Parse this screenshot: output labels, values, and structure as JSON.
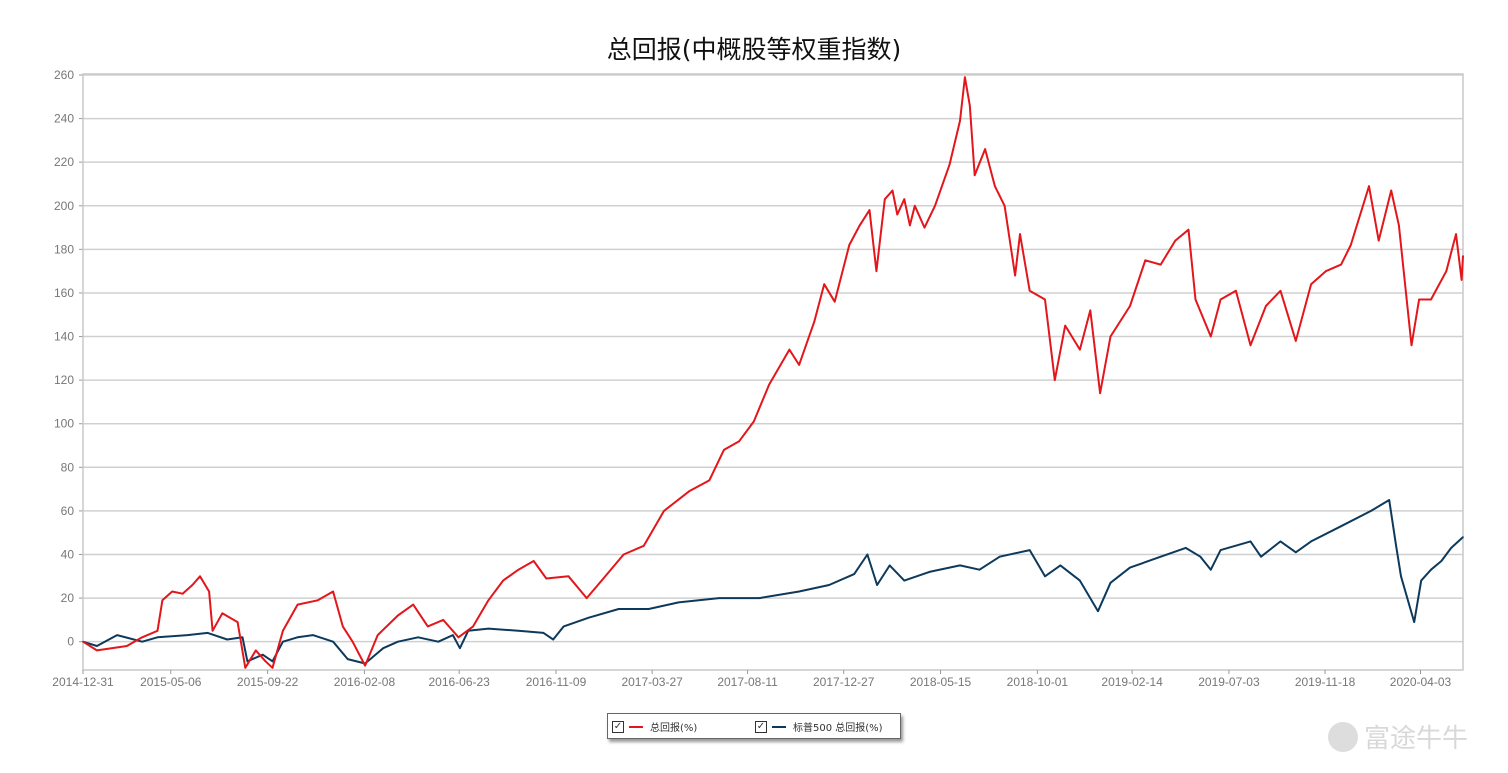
{
  "chart_data": {
    "type": "line",
    "title": "总回报(中概股等权重指数)",
    "xlabel": "",
    "ylabel": "",
    "xlim": [
      "2014-12-31",
      "2020-06-03"
    ],
    "ylim": [
      -13,
      260
    ],
    "yticks": [
      0,
      20,
      40,
      60,
      80,
      100,
      120,
      140,
      160,
      180,
      200,
      220,
      240,
      260
    ],
    "xticks": [
      "2014-12-31",
      "2015-05-06",
      "2015-09-22",
      "2016-02-08",
      "2016-06-23",
      "2016-11-09",
      "2017-03-27",
      "2017-08-11",
      "2017-12-27",
      "2018-05-15",
      "2018-10-01",
      "2019-02-14",
      "2019-07-03",
      "2019-11-18",
      "2020-04-03"
    ],
    "grid": "horizontal",
    "legend_position": "bottom",
    "series": [
      {
        "name": "总回报(%)",
        "color": "#e3161b",
        "points": [
          [
            "2014-12-31",
            0
          ],
          [
            "2015-01-20",
            -4
          ],
          [
            "2015-03-04",
            -2
          ],
          [
            "2015-03-26",
            2
          ],
          [
            "2015-04-17",
            5
          ],
          [
            "2015-04-24",
            19
          ],
          [
            "2015-05-08",
            23
          ],
          [
            "2015-05-23",
            22
          ],
          [
            "2015-06-06",
            26
          ],
          [
            "2015-06-17",
            30
          ],
          [
            "2015-06-30",
            23
          ],
          [
            "2015-07-05",
            5
          ],
          [
            "2015-07-19",
            13
          ],
          [
            "2015-08-10",
            9
          ],
          [
            "2015-08-21",
            -12
          ],
          [
            "2015-09-05",
            -4
          ],
          [
            "2015-09-19",
            -9
          ],
          [
            "2015-09-29",
            -12
          ],
          [
            "2015-10-14",
            5
          ],
          [
            "2015-11-04",
            17
          ],
          [
            "2015-12-03",
            19
          ],
          [
            "2015-12-25",
            23
          ],
          [
            "2016-01-08",
            7
          ],
          [
            "2016-01-22",
            0
          ],
          [
            "2016-02-09",
            -11
          ],
          [
            "2016-02-27",
            3
          ],
          [
            "2016-03-27",
            12
          ],
          [
            "2016-04-18",
            17
          ],
          [
            "2016-05-09",
            7
          ],
          [
            "2016-05-31",
            10
          ],
          [
            "2016-06-22",
            2
          ],
          [
            "2016-07-13",
            7
          ],
          [
            "2016-08-04",
            19
          ],
          [
            "2016-08-25",
            28
          ],
          [
            "2016-09-16",
            33
          ],
          [
            "2016-10-08",
            37
          ],
          [
            "2016-10-26",
            29
          ],
          [
            "2016-11-27",
            30
          ],
          [
            "2016-12-23",
            20
          ],
          [
            "2017-01-16",
            29
          ],
          [
            "2017-02-14",
            40
          ],
          [
            "2017-03-15",
            44
          ],
          [
            "2017-04-13",
            60
          ],
          [
            "2017-05-19",
            69
          ],
          [
            "2017-06-17",
            74
          ],
          [
            "2017-07-08",
            88
          ],
          [
            "2017-07-30",
            92
          ],
          [
            "2017-08-20",
            101
          ],
          [
            "2017-09-11",
            118
          ],
          [
            "2017-10-10",
            134
          ],
          [
            "2017-10-24",
            127
          ],
          [
            "2017-11-15",
            147
          ],
          [
            "2017-11-29",
            164
          ],
          [
            "2017-12-14",
            156
          ],
          [
            "2018-01-04",
            182
          ],
          [
            "2018-01-19",
            191
          ],
          [
            "2018-02-02",
            198
          ],
          [
            "2018-02-12",
            170
          ],
          [
            "2018-02-24",
            203
          ],
          [
            "2018-03-07",
            207
          ],
          [
            "2018-03-14",
            196
          ],
          [
            "2018-03-24",
            203
          ],
          [
            "2018-04-01",
            191
          ],
          [
            "2018-04-08",
            200
          ],
          [
            "2018-04-22",
            190
          ],
          [
            "2018-05-07",
            200
          ],
          [
            "2018-05-28",
            219
          ],
          [
            "2018-06-12",
            239
          ],
          [
            "2018-06-19",
            259
          ],
          [
            "2018-06-26",
            246
          ],
          [
            "2018-07-03",
            214
          ],
          [
            "2018-07-18",
            226
          ],
          [
            "2018-08-01",
            209
          ],
          [
            "2018-08-15",
            200
          ],
          [
            "2018-08-30",
            168
          ],
          [
            "2018-09-06",
            187
          ],
          [
            "2018-09-20",
            161
          ],
          [
            "2018-10-12",
            157
          ],
          [
            "2018-10-26",
            120
          ],
          [
            "2018-11-10",
            145
          ],
          [
            "2018-12-01",
            134
          ],
          [
            "2018-12-16",
            152
          ],
          [
            "2018-12-30",
            114
          ],
          [
            "2019-01-14",
            140
          ],
          [
            "2019-02-11",
            154
          ],
          [
            "2019-03-05",
            175
          ],
          [
            "2019-03-27",
            173
          ],
          [
            "2019-04-17",
            184
          ],
          [
            "2019-05-06",
            189
          ],
          [
            "2019-05-16",
            157
          ],
          [
            "2019-06-07",
            140
          ],
          [
            "2019-06-21",
            157
          ],
          [
            "2019-07-13",
            161
          ],
          [
            "2019-08-03",
            136
          ],
          [
            "2019-08-25",
            154
          ],
          [
            "2019-09-15",
            161
          ],
          [
            "2019-10-07",
            138
          ],
          [
            "2019-10-29",
            164
          ],
          [
            "2019-11-19",
            170
          ],
          [
            "2019-12-11",
            173
          ],
          [
            "2019-12-25",
            182
          ],
          [
            "2020-01-20",
            209
          ],
          [
            "2020-02-03",
            184
          ],
          [
            "2020-02-21",
            207
          ],
          [
            "2020-03-03",
            191
          ],
          [
            "2020-03-21",
            136
          ],
          [
            "2020-04-01",
            157
          ],
          [
            "2020-04-18",
            157
          ],
          [
            "2020-05-10",
            170
          ],
          [
            "2020-05-24",
            187
          ],
          [
            "2020-06-01",
            166
          ],
          [
            "2020-06-03",
            177
          ]
        ]
      },
      {
        "name": "标普500 总回报(%)",
        "color": "#0d3a5c",
        "points": [
          [
            "2014-12-31",
            0
          ],
          [
            "2015-01-20",
            -2
          ],
          [
            "2015-02-18",
            3
          ],
          [
            "2015-03-26",
            0
          ],
          [
            "2015-04-17",
            2
          ],
          [
            "2015-05-30",
            3
          ],
          [
            "2015-06-28",
            4
          ],
          [
            "2015-07-26",
            1
          ],
          [
            "2015-08-17",
            2
          ],
          [
            "2015-08-24",
            -9
          ],
          [
            "2015-09-15",
            -6
          ],
          [
            "2015-09-29",
            -9
          ],
          [
            "2015-10-14",
            0
          ],
          [
            "2015-11-04",
            2
          ],
          [
            "2015-11-26",
            3
          ],
          [
            "2015-12-25",
            0
          ],
          [
            "2016-01-15",
            -8
          ],
          [
            "2016-02-09",
            -10
          ],
          [
            "2016-03-06",
            -3
          ],
          [
            "2016-03-27",
            0
          ],
          [
            "2016-04-25",
            2
          ],
          [
            "2016-05-24",
            0
          ],
          [
            "2016-06-14",
            3
          ],
          [
            "2016-06-24",
            -3
          ],
          [
            "2016-07-06",
            5
          ],
          [
            "2016-08-04",
            6
          ],
          [
            "2016-09-16",
            5
          ],
          [
            "2016-10-22",
            4
          ],
          [
            "2016-11-05",
            1
          ],
          [
            "2016-11-20",
            7
          ],
          [
            "2016-12-26",
            11
          ],
          [
            "2017-02-07",
            15
          ],
          [
            "2017-03-22",
            15
          ],
          [
            "2017-05-04",
            18
          ],
          [
            "2017-07-01",
            20
          ],
          [
            "2017-08-28",
            20
          ],
          [
            "2017-10-24",
            23
          ],
          [
            "2017-12-06",
            26
          ],
          [
            "2018-01-11",
            31
          ],
          [
            "2018-01-30",
            40
          ],
          [
            "2018-02-13",
            26
          ],
          [
            "2018-03-03",
            35
          ],
          [
            "2018-03-24",
            28
          ],
          [
            "2018-04-29",
            32
          ],
          [
            "2018-06-12",
            35
          ],
          [
            "2018-07-10",
            33
          ],
          [
            "2018-08-08",
            39
          ],
          [
            "2018-09-20",
            42
          ],
          [
            "2018-10-12",
            30
          ],
          [
            "2018-11-03",
            35
          ],
          [
            "2018-12-01",
            28
          ],
          [
            "2018-12-27",
            14
          ],
          [
            "2019-01-14",
            27
          ],
          [
            "2019-02-11",
            34
          ],
          [
            "2019-03-27",
            39
          ],
          [
            "2019-05-02",
            43
          ],
          [
            "2019-05-23",
            39
          ],
          [
            "2019-06-07",
            33
          ],
          [
            "2019-06-21",
            42
          ],
          [
            "2019-08-03",
            46
          ],
          [
            "2019-08-18",
            39
          ],
          [
            "2019-09-15",
            46
          ],
          [
            "2019-10-07",
            41
          ],
          [
            "2019-10-29",
            46
          ],
          [
            "2019-12-11",
            53
          ],
          [
            "2020-01-23",
            60
          ],
          [
            "2020-02-18",
            65
          ],
          [
            "2020-02-28",
            44
          ],
          [
            "2020-03-06",
            30
          ],
          [
            "2020-03-25",
            9
          ],
          [
            "2020-04-04",
            28
          ],
          [
            "2020-04-18",
            33
          ],
          [
            "2020-05-03",
            37
          ],
          [
            "2020-05-17",
            43
          ],
          [
            "2020-06-03",
            48
          ]
        ]
      }
    ]
  },
  "legend": {
    "items": [
      {
        "label": "总回报(%)",
        "checked": true,
        "color": "#e3161b"
      },
      {
        "label": "标普500 总回报(%)",
        "checked": true,
        "color": "#0d3a5c"
      }
    ]
  },
  "watermark": "富途牛牛"
}
